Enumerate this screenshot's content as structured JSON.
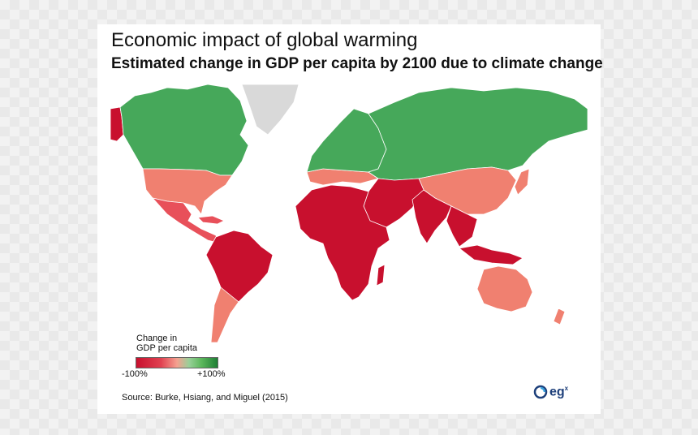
{
  "header": {
    "title": "Economic impact of global warming",
    "subtitle": "Estimated change in GDP per capita by 2100 due to climate change"
  },
  "legend": {
    "title_line1": "Change in",
    "title_line2": "GDP per capita",
    "min_label": "-100%",
    "max_label": "+100%"
  },
  "footer": {
    "source": "Source: Burke, Hsiang, and Miguel (2015)",
    "logo_text": "eg",
    "logo_superscript": "x"
  },
  "colors": {
    "strong_negative": "#c8102e",
    "moderate_negative": "#e8505a",
    "mild_negative": "#f08070",
    "slight_positive": "#b6dcb6",
    "strong_positive": "#46a85a",
    "no_data": "#d9d9d9",
    "background": "#ffffff"
  },
  "map_regions": [
    {
      "name": "Canada",
      "impact": "strong positive"
    },
    {
      "name": "Alaska",
      "impact": "strong negative"
    },
    {
      "name": "Greenland",
      "impact": "no data"
    },
    {
      "name": "United States",
      "impact": "moderate negative"
    },
    {
      "name": "Mexico and Central America",
      "impact": "moderate negative"
    },
    {
      "name": "South America",
      "impact": "strong negative"
    },
    {
      "name": "Chile and Argentina",
      "impact": "moderate negative"
    },
    {
      "name": "Northern Europe",
      "impact": "strong positive"
    },
    {
      "name": "Southern Europe",
      "impact": "moderate negative"
    },
    {
      "name": "Russia",
      "impact": "strong positive"
    },
    {
      "name": "Central Asia",
      "impact": "strong positive"
    },
    {
      "name": "Africa",
      "impact": "strong negative"
    },
    {
      "name": "Middle East",
      "impact": "strong negative"
    },
    {
      "name": "South Asia",
      "impact": "strong negative"
    },
    {
      "name": "China",
      "impact": "moderate negative"
    },
    {
      "name": "Southeast Asia",
      "impact": "strong negative"
    },
    {
      "name": "Australia",
      "impact": "moderate negative"
    },
    {
      "name": "New Zealand",
      "impact": "moderate negative"
    }
  ]
}
